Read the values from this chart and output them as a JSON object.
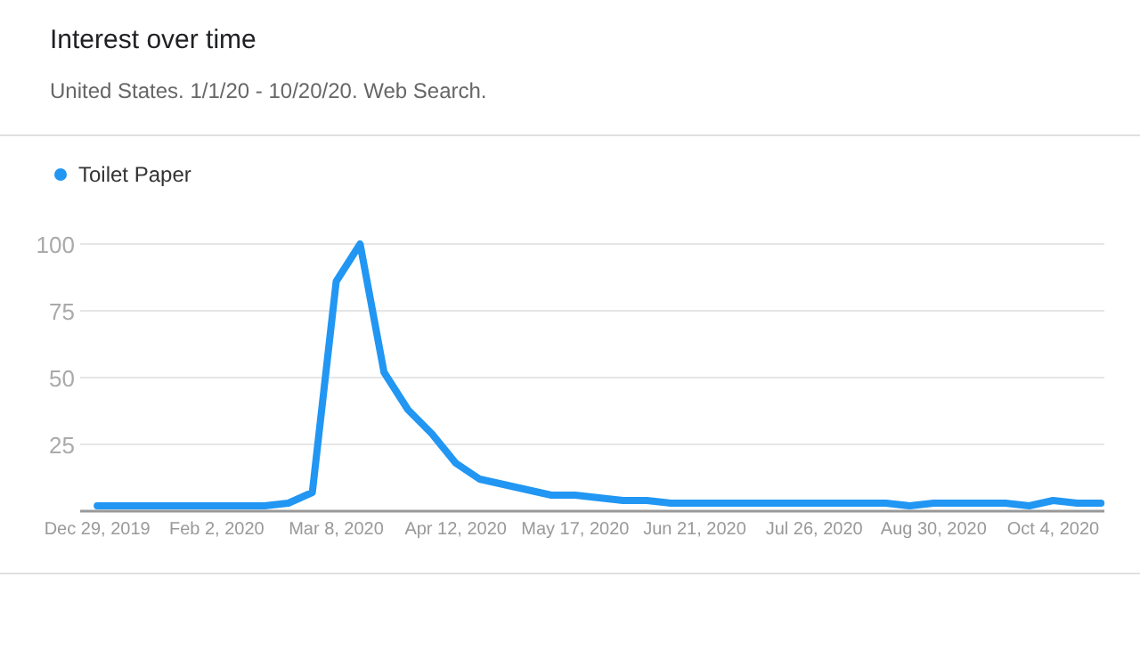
{
  "chart_data": {
    "type": "line",
    "title": "Interest over time",
    "subtitle": "United States. 1/1/20 - 10/20/20. Web Search.",
    "x": [
      "2019-12-29",
      "2020-01-05",
      "2020-01-12",
      "2020-01-19",
      "2020-01-26",
      "2020-02-02",
      "2020-02-09",
      "2020-02-16",
      "2020-02-23",
      "2020-03-01",
      "2020-03-08",
      "2020-03-15",
      "2020-03-22",
      "2020-03-29",
      "2020-04-05",
      "2020-04-12",
      "2020-04-19",
      "2020-04-26",
      "2020-05-03",
      "2020-05-10",
      "2020-05-17",
      "2020-05-24",
      "2020-05-31",
      "2020-06-07",
      "2020-06-14",
      "2020-06-21",
      "2020-06-28",
      "2020-07-05",
      "2020-07-12",
      "2020-07-19",
      "2020-07-26",
      "2020-08-02",
      "2020-08-09",
      "2020-08-16",
      "2020-08-23",
      "2020-08-30",
      "2020-09-06",
      "2020-09-13",
      "2020-09-20",
      "2020-09-27",
      "2020-10-04",
      "2020-10-11",
      "2020-10-18"
    ],
    "series": [
      {
        "name": "Toilet Paper",
        "color": "#2196f3",
        "values": [
          2,
          2,
          2,
          2,
          2,
          2,
          2,
          2,
          3,
          7,
          86,
          100,
          52,
          38,
          29,
          18,
          12,
          10,
          8,
          6,
          6,
          5,
          4,
          4,
          3,
          3,
          3,
          3,
          3,
          3,
          3,
          3,
          3,
          3,
          2,
          3,
          3,
          3,
          3,
          2,
          4,
          3,
          3
        ]
      }
    ],
    "xlim": [
      "2019-12-24",
      "2020-10-19"
    ],
    "xticks": [
      {
        "value": "2019-12-29",
        "label": "Dec 29, 2019"
      },
      {
        "value": "2020-02-02",
        "label": "Feb 2, 2020"
      },
      {
        "value": "2020-03-08",
        "label": "Mar 8, 2020"
      },
      {
        "value": "2020-04-12",
        "label": "Apr 12, 2020"
      },
      {
        "value": "2020-05-17",
        "label": "May 17, 2020"
      },
      {
        "value": "2020-06-21",
        "label": "Jun 21, 2020"
      },
      {
        "value": "2020-07-26",
        "label": "Jul 26, 2020"
      },
      {
        "value": "2020-08-30",
        "label": "Aug 30, 2020"
      },
      {
        "value": "2020-10-04",
        "label": "Oct 4, 2020"
      }
    ],
    "ylim": [
      0,
      100
    ],
    "yticks": [
      25,
      50,
      75,
      100
    ],
    "grid": "y",
    "legend": "top left",
    "marker": "none",
    "line_style": "solid"
  }
}
